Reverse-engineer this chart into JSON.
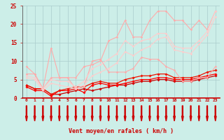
{
  "x": [
    0,
    1,
    2,
    3,
    4,
    5,
    6,
    7,
    8,
    9,
    10,
    11,
    12,
    13,
    14,
    15,
    16,
    17,
    18,
    19,
    20,
    21,
    22,
    23
  ],
  "lines": [
    {
      "y": [
        3.5,
        2.5,
        2.5,
        1.0,
        1.0,
        1.5,
        2.0,
        2.5,
        2.0,
        2.5,
        3.0,
        3.5,
        3.5,
        4.0,
        4.5,
        4.5,
        5.0,
        5.0,
        4.5,
        4.5,
        4.5,
        5.0,
        5.5,
        6.0
      ],
      "color": "#cc0000",
      "lw": 0.9,
      "marker": "D",
      "ms": 1.8
    },
    {
      "y": [
        3.0,
        2.0,
        2.0,
        0.5,
        2.0,
        2.0,
        2.5,
        1.5,
        3.5,
        4.0,
        3.5,
        3.5,
        4.0,
        4.5,
        5.0,
        5.0,
        5.5,
        5.5,
        5.0,
        5.0,
        5.0,
        5.5,
        6.0,
        6.5
      ],
      "color": "#ff0000",
      "lw": 0.9,
      "marker": "D",
      "ms": 1.8
    },
    {
      "y": [
        3.5,
        2.5,
        2.5,
        1.0,
        2.0,
        2.5,
        3.0,
        3.0,
        4.0,
        4.5,
        4.0,
        4.0,
        5.0,
        5.5,
        6.0,
        6.0,
        6.5,
        6.5,
        5.5,
        5.5,
        5.5,
        6.0,
        7.0,
        7.5
      ],
      "color": "#ee1100",
      "lw": 0.9,
      "marker": "D",
      "ms": 1.8
    },
    {
      "y": [
        8.5,
        6.5,
        2.5,
        13.5,
        5.5,
        5.5,
        2.5,
        3.0,
        10.0,
        10.5,
        7.0,
        7.0,
        7.0,
        8.0,
        11.0,
        10.5,
        10.5,
        8.5,
        7.5,
        4.5,
        4.5,
        5.5,
        5.5,
        8.5
      ],
      "color": "#ffaaaa",
      "lw": 0.8,
      "marker": "D",
      "ms": 1.5
    },
    {
      "y": [
        6.5,
        6.5,
        2.5,
        5.5,
        5.5,
        5.5,
        5.5,
        8.5,
        9.0,
        10.0,
        15.5,
        16.5,
        21.0,
        16.5,
        16.5,
        21.0,
        23.5,
        23.5,
        21.0,
        21.0,
        18.5,
        21.0,
        18.5,
        23.5
      ],
      "color": "#ffaaaa",
      "lw": 0.8,
      "marker": "D",
      "ms": 1.5
    },
    {
      "y": [
        6.0,
        5.5,
        2.5,
        5.0,
        4.5,
        4.5,
        3.0,
        4.5,
        8.0,
        9.0,
        10.5,
        12.0,
        15.5,
        14.0,
        15.5,
        16.0,
        17.5,
        17.5,
        14.0,
        13.5,
        13.5,
        15.5,
        18.0,
        23.5
      ],
      "color": "#ffcccc",
      "lw": 0.8,
      "marker": "D",
      "ms": 1.5
    },
    {
      "y": [
        5.5,
        5.0,
        2.0,
        4.0,
        3.5,
        3.0,
        2.5,
        3.5,
        6.0,
        7.0,
        8.0,
        9.5,
        12.5,
        11.5,
        13.0,
        14.0,
        16.0,
        16.5,
        13.0,
        12.5,
        12.0,
        14.5,
        17.0,
        22.0
      ],
      "color": "#ffcccc",
      "lw": 0.8,
      "marker": "D",
      "ms": 1.5
    }
  ],
  "bg_color": "#cceee8",
  "grid_color": "#aacccc",
  "xlabel": "Vent moyen/en rafales ( km/h )",
  "xlim": [
    -0.5,
    23.5
  ],
  "ylim": [
    0,
    25
  ],
  "yticks": [
    0,
    5,
    10,
    15,
    20,
    25
  ],
  "xticks": [
    0,
    1,
    2,
    3,
    4,
    5,
    6,
    7,
    8,
    9,
    10,
    11,
    12,
    13,
    14,
    15,
    16,
    17,
    18,
    19,
    20,
    21,
    22,
    23
  ],
  "arrow_color": "#cc0000",
  "tick_color": "#cc0000",
  "label_color": "#cc0000"
}
